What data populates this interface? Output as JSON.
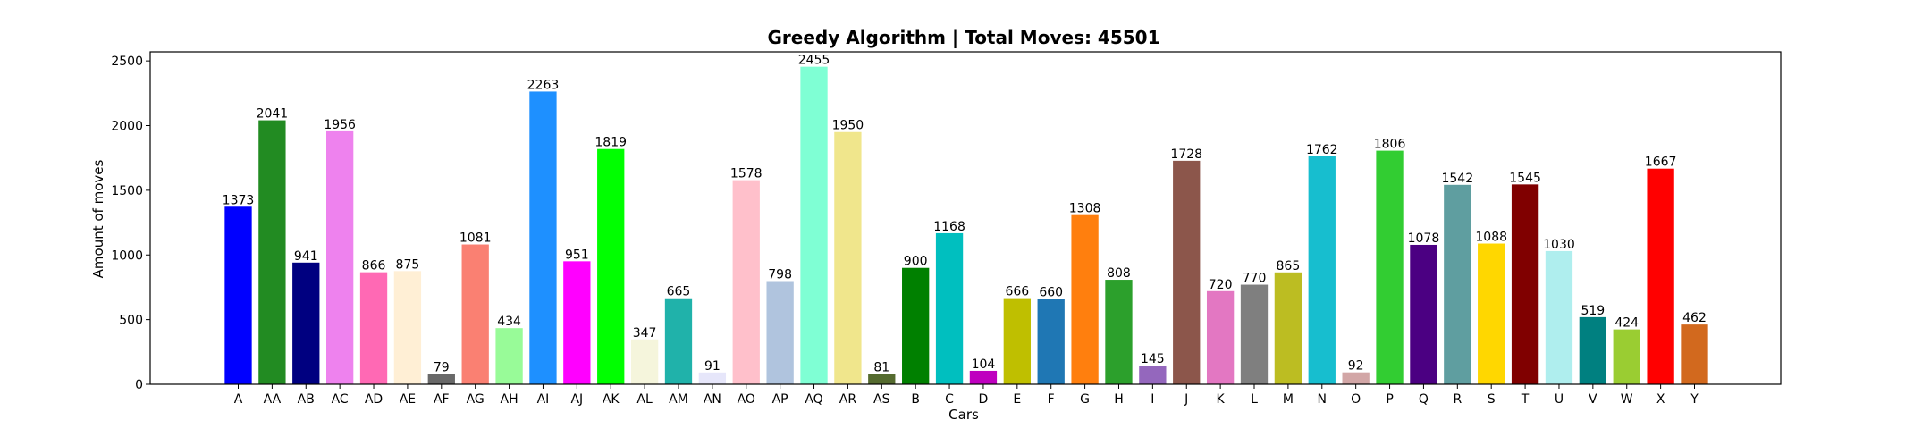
{
  "chart_data": {
    "type": "bar",
    "title": "Greedy Algorithm | Total Moves: 45501",
    "xlabel": "Cars",
    "ylabel": "Amount of moves",
    "ylim": [
      0,
      2570
    ],
    "yticks": [
      0,
      500,
      1000,
      1500,
      2000,
      2500
    ],
    "grid": false,
    "legend": "none",
    "categories": [
      "A",
      "AA",
      "AB",
      "AC",
      "AD",
      "AE",
      "AF",
      "AG",
      "AH",
      "AI",
      "AJ",
      "AK",
      "AL",
      "AM",
      "AN",
      "AO",
      "AP",
      "AQ",
      "AR",
      "AS",
      "B",
      "C",
      "D",
      "E",
      "F",
      "G",
      "H",
      "I",
      "J",
      "K",
      "L",
      "M",
      "N",
      "O",
      "P",
      "Q",
      "R",
      "S",
      "T",
      "U",
      "V",
      "W",
      "X",
      "Y"
    ],
    "values": [
      1373,
      2041,
      941,
      1956,
      866,
      875,
      79,
      1081,
      434,
      2263,
      951,
      1819,
      347,
      665,
      91,
      1578,
      798,
      2455,
      1950,
      81,
      900,
      1168,
      104,
      666,
      660,
      1308,
      808,
      145,
      1728,
      720,
      770,
      865,
      1762,
      92,
      1806,
      1078,
      1542,
      1088,
      1545,
      1030,
      519,
      424,
      1667,
      462
    ],
    "colors": [
      "#0000ff",
      "#228b22",
      "#000080",
      "#ee82ee",
      "#ff69b4",
      "#ffefd5",
      "#696969",
      "#fa8072",
      "#98fb98",
      "#1e90ff",
      "#ff00ff",
      "#00ff00",
      "#f5f5dc",
      "#20b2aa",
      "#e6e6fa",
      "#ffc0cb",
      "#b0c4de",
      "#7fffd4",
      "#f0e68c",
      "#556b2f",
      "#008000",
      "#00bfbf",
      "#bf00bf",
      "#bfbf00",
      "#1f77b4",
      "#ff7f0e",
      "#2ca02c",
      "#9467bd",
      "#8c564b",
      "#e377c2",
      "#7f7f7f",
      "#bcbd22",
      "#17becf",
      "#d2a6a6",
      "#32cd32",
      "#4b0082",
      "#5f9ea0",
      "#ffd700",
      "#800000",
      "#afeeee",
      "#008080",
      "#9acd32",
      "#ff0000",
      "#d2691e"
    ]
  }
}
